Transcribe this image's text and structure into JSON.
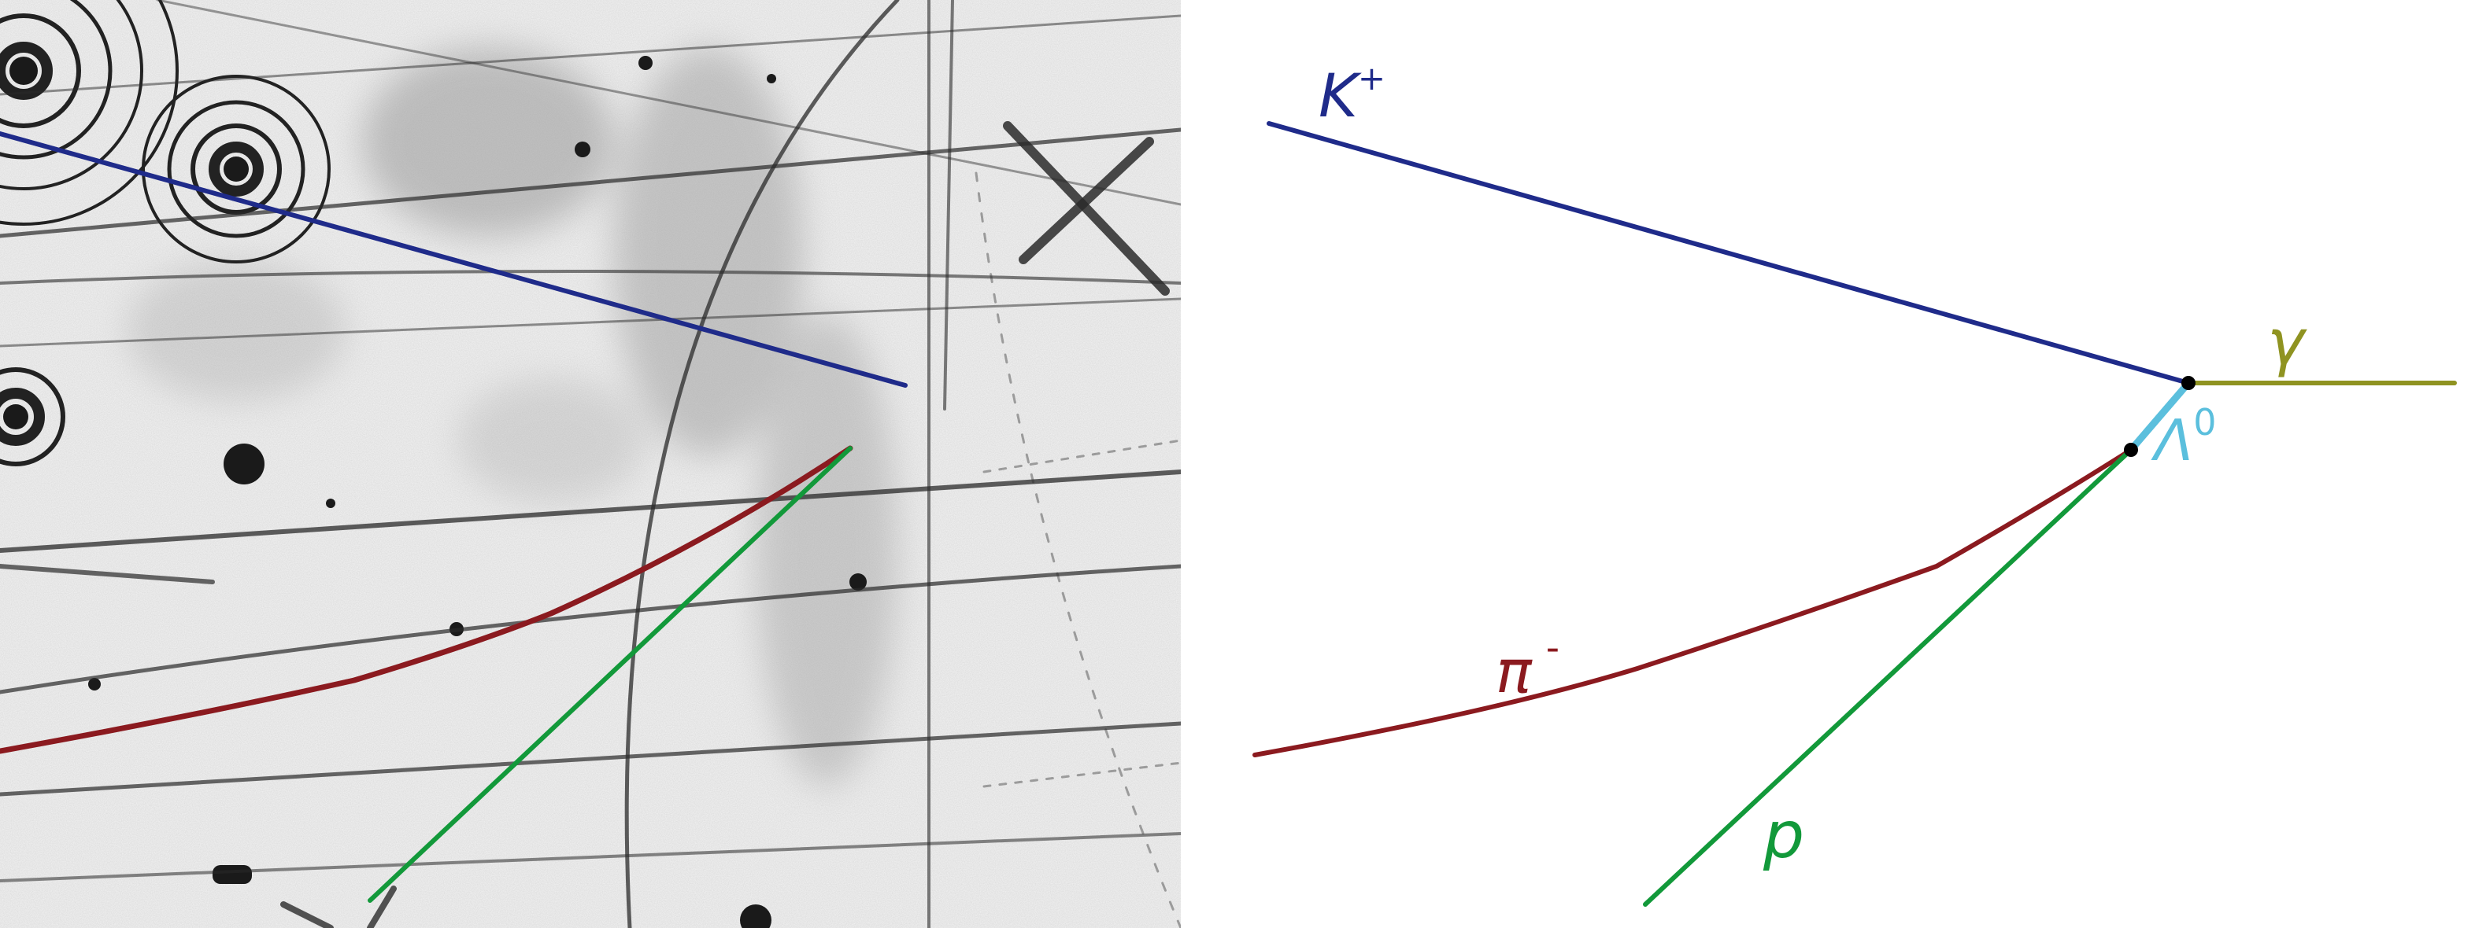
{
  "colors": {
    "kaon": "#1f2b8a",
    "pion": "#8b1a1f",
    "proton": "#12993a",
    "lambda": "#5bbfdd",
    "gamma": "#8f9321",
    "vertex": "#000000",
    "track_dark": "#1a1a1a",
    "photo_background": "#f2f2f2"
  },
  "labels": {
    "kaon": "K",
    "kaon_charge": "+",
    "pion": "π",
    "pion_charge": "-",
    "proton": "p",
    "lambda": "Λ",
    "lambda_superscript": "0",
    "gamma": "γ"
  },
  "panels": {
    "photo": "bubble-chamber-photograph",
    "diagram": "decay-schematic"
  }
}
